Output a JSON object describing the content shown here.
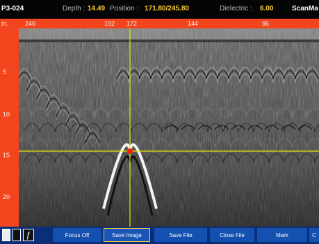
{
  "header": {
    "file_name": "P3-024",
    "depth_label": "Depth :",
    "depth_value": "14.49",
    "position_label": "Position :",
    "position_value": "171.80/245.80",
    "dielectric_label": "Dielectric :",
    "dielectric_value": "6.00",
    "app_name": "ScanMa"
  },
  "ruler": {
    "ticks": [
      "in.",
      "240",
      "192",
      "172",
      "144",
      "96"
    ]
  },
  "depth_axis": {
    "ticks": [
      "5",
      "10",
      "15",
      "20"
    ]
  },
  "cursor": {
    "color": "#e8e800",
    "target_color": "#ff2200"
  },
  "toolbar": {
    "focus": "Focus Off",
    "save_image": "Save Image",
    "save_file": "Save File",
    "close_file": "Close File",
    "mark": "Mark",
    "extra": "C"
  },
  "icons": [
    "battery-icon",
    "storage-icon",
    "flash-icon"
  ],
  "colors": {
    "ruler": "#f2451e",
    "toolbar": "#0a2e78",
    "button": "#1450b0",
    "highlight": "#ffcc33"
  }
}
